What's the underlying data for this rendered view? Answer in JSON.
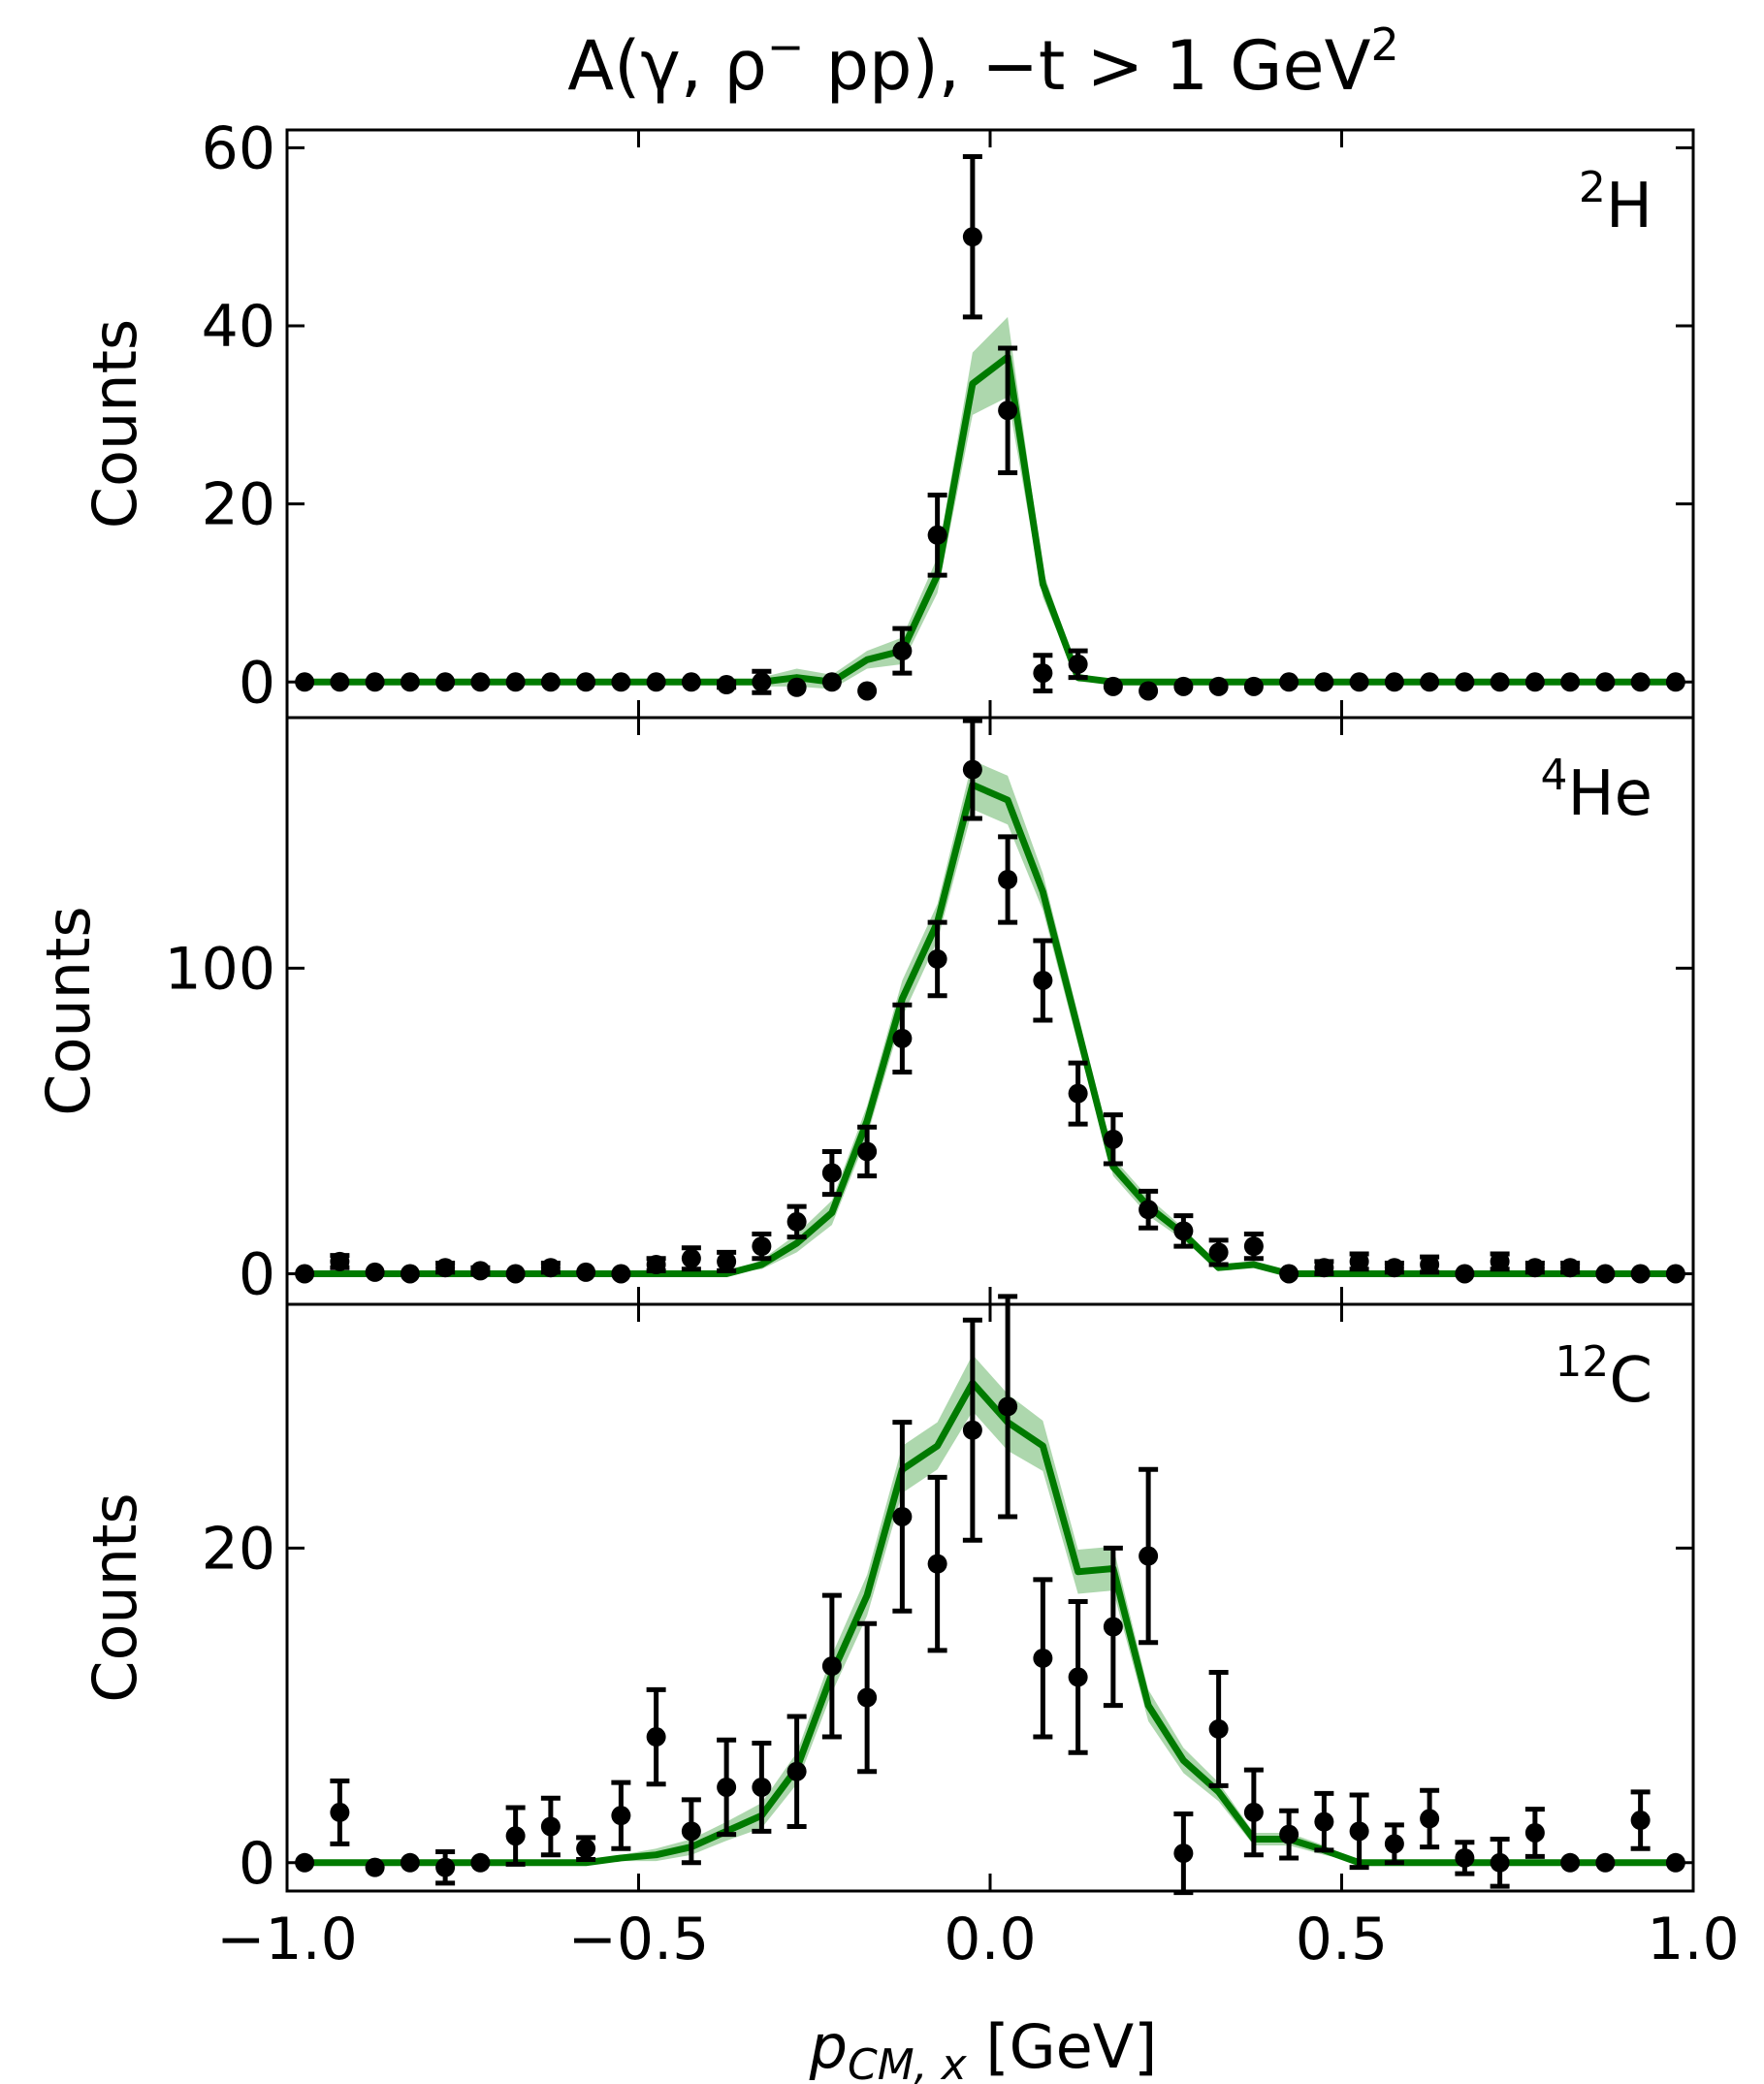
{
  "chart_data": {
    "type": "scatter",
    "title": "A(γ, ρ⁻ pp), −t > 1 GeV²",
    "title_parts": {
      "main": "A(γ, ρ",
      "sup1": "−",
      "mid": " pp), −t > 1 GeV",
      "sup2": "2"
    },
    "xlabel": "p",
    "xlabel_sub": "CM, x",
    "xlabel_unit": " [GeV]",
    "xlim": [
      -1.0,
      1.0
    ],
    "xticks": [
      -1.0,
      -0.5,
      0.0,
      0.5,
      1.0
    ],
    "xtick_labels": [
      "−1.0",
      "−0.5",
      "0.0",
      "0.5",
      "1.0"
    ],
    "x": [
      -0.975,
      -0.925,
      -0.875,
      -0.825,
      -0.775,
      -0.725,
      -0.675,
      -0.625,
      -0.575,
      -0.525,
      -0.475,
      -0.425,
      -0.375,
      -0.325,
      -0.275,
      -0.225,
      -0.175,
      -0.125,
      -0.075,
      -0.025,
      0.025,
      0.075,
      0.125,
      0.175,
      0.225,
      0.275,
      0.325,
      0.375,
      0.425,
      0.475,
      0.525,
      0.575,
      0.625,
      0.675,
      0.725,
      0.775,
      0.825,
      0.875,
      0.925,
      0.975
    ],
    "grid": false,
    "panels": [
      {
        "label_mass": "2",
        "label_elem": "H",
        "ylabel": "Counts",
        "ylim": [
          -4,
          62
        ],
        "yticks": [
          0,
          20,
          40,
          60
        ],
        "ytick_labels": [
          "0",
          "20",
          "40",
          "60"
        ],
        "data": {
          "y": [
            0,
            0,
            0,
            0,
            0,
            0,
            0,
            0,
            0,
            0,
            0,
            0,
            -0.3,
            0,
            -0.6,
            0,
            -1,
            3.5,
            16.5,
            50,
            30.5,
            1,
            2,
            -0.5,
            -1,
            -0.5,
            -0.5,
            -0.5,
            0,
            0,
            0,
            0,
            0,
            0,
            0,
            0,
            0,
            0,
            0,
            0
          ],
          "err": [
            0,
            0,
            0,
            0,
            0,
            0,
            0,
            0,
            0,
            0,
            0,
            0,
            0.3,
            1.2,
            0,
            0,
            0,
            2.5,
            4.5,
            9,
            7,
            2,
            1.5,
            0,
            0,
            0,
            0,
            0,
            0,
            0,
            0,
            0,
            0,
            0,
            0,
            0,
            0,
            0,
            0,
            0
          ]
        },
        "model": {
          "y": [
            0,
            0,
            0,
            0,
            0,
            0,
            0,
            0,
            0,
            0,
            0,
            0,
            0,
            0,
            0.5,
            0,
            2.5,
            3.5,
            12,
            33.5,
            36.5,
            11,
            0.5,
            0,
            0,
            0,
            0,
            0,
            0,
            0,
            0,
            0,
            0,
            0,
            0,
            0,
            0,
            0,
            0,
            0
          ],
          "band": [
            0,
            0,
            0,
            0,
            0,
            0,
            0,
            0,
            0,
            0,
            0,
            0,
            0,
            0.5,
            1,
            0.8,
            1,
            1.5,
            2,
            3.5,
            4.5,
            1.5,
            0.5,
            0,
            0,
            0,
            0,
            0,
            0,
            0,
            0,
            0,
            0,
            0,
            0,
            0,
            0,
            0,
            0,
            0
          ]
        }
      },
      {
        "label_mass": "4",
        "label_elem": "He",
        "ylabel": "Counts",
        "ylim": [
          -10,
          182
        ],
        "yticks": [
          0,
          100
        ],
        "ytick_labels": [
          "0",
          "100"
        ],
        "data": {
          "y": [
            0,
            4,
            0.5,
            0,
            2,
            1,
            0,
            2,
            0.5,
            0,
            3,
            5,
            4,
            9,
            17,
            33,
            40,
            77,
            103,
            165,
            129,
            96,
            59,
            44,
            21,
            14,
            7,
            9,
            0,
            2,
            4,
            2,
            3,
            0,
            4,
            2,
            2,
            0,
            0,
            0
          ],
          "err": [
            0,
            2,
            0,
            0,
            1.5,
            1,
            0,
            1.5,
            0,
            0,
            2,
            3.5,
            3,
            4,
            5,
            7,
            8,
            11,
            12,
            16,
            14,
            13,
            10,
            8,
            6,
            5,
            4,
            4,
            0,
            2,
            2.5,
            1.5,
            2.5,
            0,
            2.5,
            1.5,
            1.5,
            0,
            0,
            0
          ]
        },
        "model": {
          "y": [
            0,
            0,
            0,
            0,
            0,
            0,
            0,
            0,
            0,
            0,
            0,
            0,
            0,
            3,
            10,
            20,
            50,
            90,
            115,
            160,
            155,
            125,
            80,
            35,
            22,
            13,
            2,
            3,
            0,
            0,
            0,
            0,
            0,
            0,
            0,
            0,
            0,
            0,
            0,
            0
          ],
          "band": [
            0,
            0,
            0,
            0,
            0,
            0,
            0,
            0,
            0,
            0,
            0,
            0,
            0,
            1.5,
            3,
            4,
            5,
            6,
            6,
            8,
            8,
            6,
            5,
            3,
            3,
            2,
            1,
            1,
            0,
            0,
            0,
            0,
            0,
            0,
            0,
            0,
            0,
            0,
            0,
            0
          ]
        }
      },
      {
        "label_mass": "12",
        "label_elem": "C",
        "ylabel": "Counts",
        "ylim": [
          -1.8,
          35.5
        ],
        "yticks": [
          0,
          20
        ],
        "ytick_labels": [
          "0",
          "20"
        ],
        "data": {
          "y": [
            0,
            3.2,
            -0.3,
            0,
            -0.3,
            0,
            1.7,
            2.3,
            0.9,
            3,
            8,
            2,
            4.8,
            4.8,
            5.8,
            12.5,
            10.5,
            22,
            19,
            27.5,
            29,
            13,
            11.8,
            15,
            19.5,
            0.6,
            8.5,
            3.2,
            1.8,
            2.6,
            2,
            1.2,
            2.8,
            0.3,
            0,
            1.9,
            0,
            0,
            2.7,
            0
          ],
          "err": [
            0,
            2,
            0,
            0,
            1,
            0,
            1.8,
            1.8,
            0.7,
            2.1,
            3,
            2,
            3,
            2.8,
            3.5,
            4.5,
            4.7,
            6,
            5.5,
            7,
            7,
            5,
            4.8,
            5,
            5.5,
            2.5,
            3.6,
            2.7,
            1.5,
            1.8,
            2.3,
            1.2,
            1.8,
            1,
            1.5,
            1.5,
            0,
            0,
            1.8,
            0
          ]
        },
        "model": {
          "y": [
            0,
            0,
            0,
            0,
            0,
            0,
            0,
            0,
            0,
            0.3,
            0.5,
            1,
            2,
            3,
            6,
            12,
            17,
            25,
            26.5,
            30.5,
            28,
            26.5,
            18.5,
            18.7,
            10,
            6.5,
            4.5,
            1.5,
            1.5,
            0.8,
            0,
            0,
            0,
            0,
            0,
            0,
            0,
            0,
            0,
            0
          ],
          "band": [
            0,
            0,
            0,
            0,
            0,
            0,
            0,
            0,
            0,
            0.2,
            0.4,
            0.5,
            0.6,
            0.8,
            1,
            1.2,
            1.3,
            1.5,
            1.5,
            1.8,
            1.8,
            1.6,
            1.4,
            1.4,
            1,
            0.8,
            0.6,
            0.4,
            0.4,
            0.3,
            0,
            0,
            0,
            0,
            0,
            0,
            0,
            0,
            0,
            0
          ]
        }
      }
    ],
    "colors": {
      "data": "#000000",
      "model": "#007a00",
      "band": "#9fd09f"
    }
  }
}
